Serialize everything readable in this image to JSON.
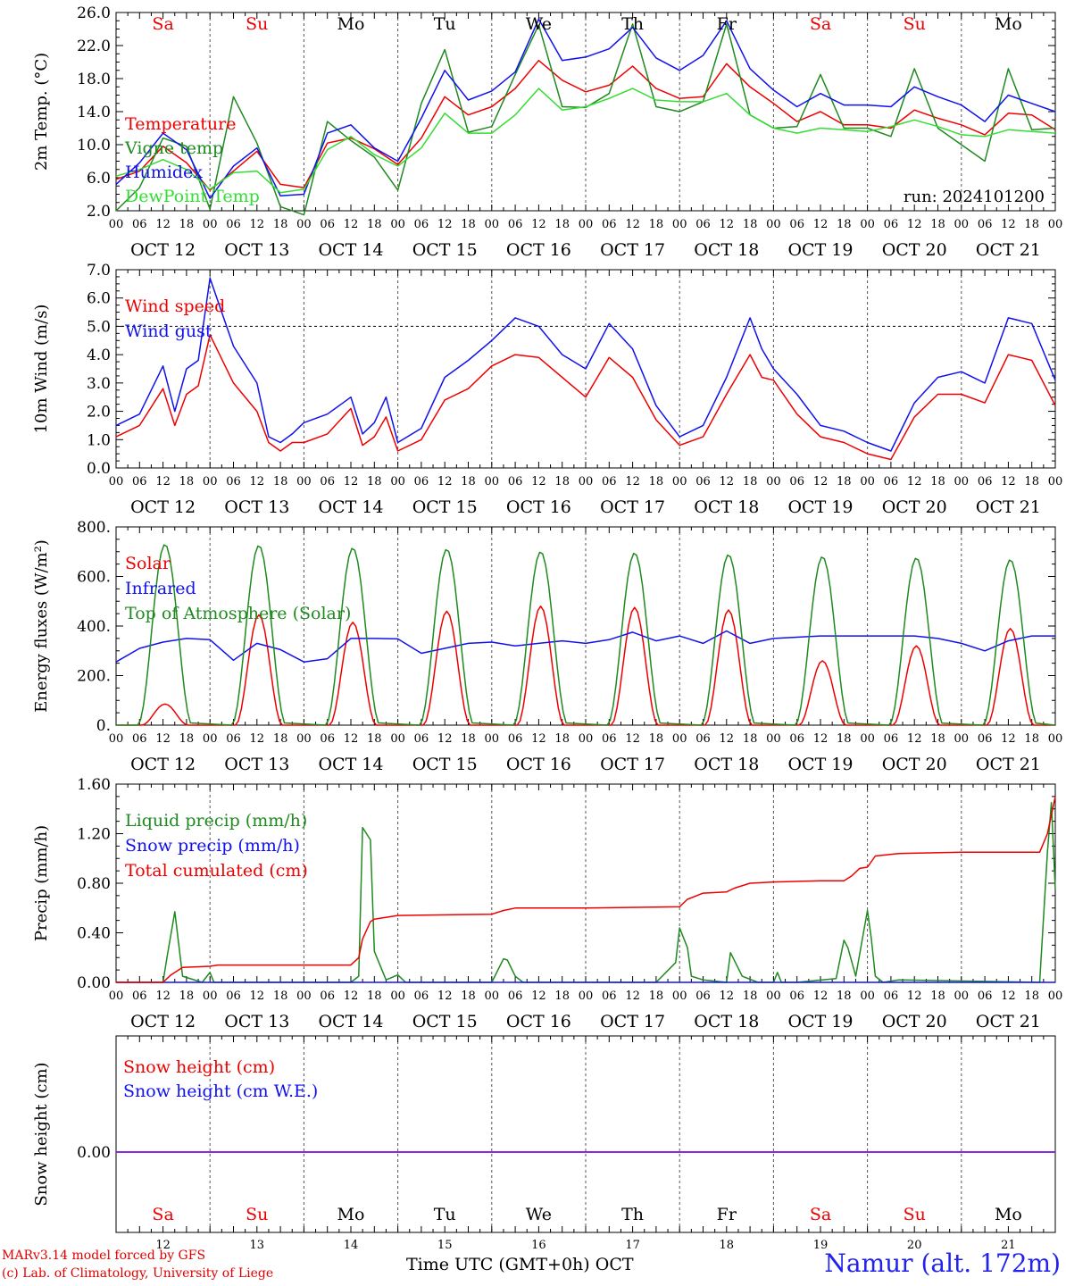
{
  "colors": {
    "red": "#ee0000",
    "green": "#1f8a1f",
    "light_green": "#33dd33",
    "blue": "#1111ee",
    "purple": "#8a2be2",
    "weekend": "#ee0000",
    "weekday": "#000000"
  },
  "time_axis": {
    "hour_labels": [
      "00",
      "06",
      "12",
      "18"
    ],
    "end_label": "00",
    "dates": [
      "OCT 12",
      "OCT 13",
      "OCT 14",
      "OCT 15",
      "OCT 16",
      "OCT 17",
      "OCT 18",
      "OCT 19",
      "OCT 20",
      "OCT 21"
    ],
    "weekdays": [
      "Sa",
      "Su",
      "Mo",
      "Tu",
      "We",
      "Th",
      "Fr",
      "Sa",
      "Su",
      "Mo"
    ],
    "weekend": [
      true,
      true,
      false,
      false,
      false,
      false,
      false,
      true,
      true,
      false
    ],
    "day_numbers": [
      "12",
      "13",
      "14",
      "15",
      "16",
      "17",
      "18",
      "19",
      "20",
      "21"
    ]
  },
  "footer": {
    "model": "MARv3.14 model forced by GFS",
    "lab": "(c) Lab. of Climatology, University of Liege",
    "time_label": "Time UTC (GMT+0h)",
    "month": "OCT",
    "station": "Namur (alt. 172m)"
  },
  "chart_data": [
    {
      "type": "line",
      "ylabel": "2m Temp. (°C)",
      "ylim": [
        2.0,
        26.0
      ],
      "yticks": [
        "2.0",
        "6.0",
        "10.0",
        "14.0",
        "18.0",
        "22.0",
        "26.0"
      ],
      "annotation": "run: 2024101200",
      "x_unit": "hours since OCT 12 00 UTC",
      "series": [
        {
          "name": "Temperature",
          "color": "red",
          "x": [
            0,
            6,
            12,
            18,
            24,
            30,
            36,
            42,
            48,
            54,
            60,
            66,
            72,
            78,
            84,
            90,
            96,
            102,
            108,
            114,
            120,
            126,
            132,
            138,
            144,
            150,
            156,
            162,
            168,
            174,
            180,
            186,
            192,
            198,
            204,
            210,
            216,
            222,
            228,
            234,
            240
          ],
          "y": [
            5.8,
            6.8,
            9.8,
            7.8,
            4.5,
            6.8,
            9.2,
            5.2,
            4.8,
            10.2,
            10.8,
            9.5,
            7.6,
            10.8,
            15.8,
            13.6,
            14.6,
            16.8,
            20.2,
            17.8,
            16.4,
            17.2,
            19.5,
            16.8,
            15.6,
            15.8,
            19.8,
            17.0,
            15.0,
            12.8,
            14.0,
            12.4,
            12.4,
            12.0,
            14.2,
            13.2,
            12.4,
            11.2,
            13.8,
            13.6,
            11.8
          ]
        },
        {
          "name": "Vigne temp",
          "color": "green",
          "x": [
            0,
            6,
            12,
            18,
            24,
            30,
            36,
            42,
            48,
            54,
            60,
            66,
            72,
            78,
            84,
            90,
            96,
            102,
            108,
            114,
            120,
            126,
            132,
            138,
            144,
            150,
            156,
            162,
            168,
            174,
            180,
            186,
            192,
            198,
            204,
            210,
            216,
            222,
            228,
            234,
            240
          ],
          "y": [
            2.0,
            4.8,
            10.8,
            9.8,
            2.2,
            15.8,
            10.2,
            2.5,
            1.5,
            12.8,
            10.5,
            8.5,
            4.5,
            15.0,
            21.5,
            11.5,
            12.2,
            18.5,
            24.5,
            14.6,
            14.5,
            16.2,
            24.6,
            14.6,
            14.0,
            15.2,
            24.6,
            13.6,
            12.0,
            12.2,
            18.5,
            12.0,
            12.0,
            11.0,
            19.2,
            12.0,
            10.0,
            8.0,
            19.2,
            11.8,
            12.0
          ]
        },
        {
          "name": "Humidex",
          "color": "blue",
          "x": [
            0,
            6,
            12,
            18,
            24,
            30,
            36,
            42,
            48,
            54,
            60,
            66,
            72,
            78,
            84,
            90,
            96,
            102,
            108,
            114,
            120,
            126,
            132,
            138,
            144,
            150,
            156,
            162,
            168,
            174,
            180,
            186,
            192,
            198,
            204,
            210,
            216,
            222,
            228,
            234,
            240
          ],
          "y": [
            5.2,
            7.8,
            11.4,
            9.4,
            3.5,
            7.4,
            9.6,
            3.8,
            4.0,
            11.4,
            12.4,
            9.6,
            8.0,
            13.2,
            19.0,
            15.4,
            16.5,
            18.8,
            25.2,
            20.2,
            20.6,
            21.6,
            24.2,
            20.5,
            19.0,
            20.8,
            25.0,
            19.2,
            16.6,
            14.6,
            16.2,
            14.8,
            14.8,
            14.6,
            17.0,
            15.8,
            14.8,
            12.8,
            16.0,
            15.0,
            14.0
          ]
        },
        {
          "name": "DewPoint Temp",
          "color": "light_green",
          "x": [
            0,
            6,
            12,
            18,
            24,
            30,
            36,
            42,
            48,
            54,
            60,
            66,
            72,
            78,
            84,
            90,
            96,
            102,
            108,
            114,
            120,
            126,
            132,
            138,
            144,
            150,
            156,
            162,
            168,
            174,
            180,
            186,
            192,
            198,
            204,
            210,
            216,
            222,
            228,
            234,
            240
          ],
          "y": [
            6.2,
            7.0,
            8.2,
            7.0,
            4.6,
            6.6,
            6.8,
            4.2,
            4.6,
            9.4,
            11.0,
            8.8,
            7.4,
            9.6,
            13.8,
            11.4,
            11.4,
            13.6,
            16.8,
            14.2,
            14.6,
            15.6,
            16.8,
            15.4,
            15.2,
            15.2,
            16.2,
            13.6,
            12.0,
            11.4,
            12.0,
            11.8,
            11.6,
            12.2,
            13.0,
            12.2,
            11.2,
            11.0,
            11.8,
            11.6,
            11.4
          ]
        }
      ]
    },
    {
      "type": "line",
      "ylabel": "10m Wind (m/s)",
      "ylim": [
        0.0,
        7.0
      ],
      "yticks": [
        "0.0",
        "1.0",
        "2.0",
        "3.0",
        "4.0",
        "5.0",
        "6.0",
        "7.0"
      ],
      "reference_line": 5.0,
      "x_unit": "hours since OCT 12 00 UTC",
      "series": [
        {
          "name": "Wind speed",
          "color": "red",
          "x": [
            0,
            6,
            12,
            15,
            18,
            21,
            24,
            30,
            36,
            39,
            42,
            45,
            48,
            54,
            60,
            63,
            66,
            69,
            72,
            78,
            84,
            90,
            96,
            102,
            108,
            114,
            120,
            126,
            132,
            138,
            144,
            150,
            156,
            162,
            165,
            168,
            174,
            180,
            186,
            192,
            198,
            204,
            210,
            216,
            222,
            228,
            234,
            240
          ],
          "y": [
            1.1,
            1.5,
            2.8,
            1.5,
            2.6,
            2.9,
            4.7,
            3.0,
            2.0,
            0.9,
            0.6,
            0.9,
            0.9,
            1.2,
            2.1,
            0.8,
            1.1,
            1.8,
            0.6,
            1.0,
            2.4,
            2.8,
            3.6,
            4.0,
            3.9,
            3.2,
            2.5,
            3.9,
            3.2,
            1.7,
            0.8,
            1.1,
            2.6,
            4.0,
            3.2,
            3.1,
            1.9,
            1.1,
            0.9,
            0.5,
            0.3,
            1.8,
            2.6,
            2.6,
            2.3,
            4.0,
            3.8,
            2.2
          ]
        },
        {
          "name": "Wind gust",
          "color": "blue",
          "x": [
            0,
            6,
            12,
            15,
            18,
            21,
            24,
            30,
            36,
            39,
            42,
            45,
            48,
            54,
            60,
            63,
            66,
            69,
            72,
            78,
            84,
            90,
            96,
            102,
            108,
            114,
            120,
            126,
            132,
            138,
            144,
            150,
            156,
            162,
            165,
            168,
            174,
            180,
            186,
            192,
            198,
            204,
            210,
            216,
            222,
            228,
            234,
            240
          ],
          "y": [
            1.5,
            1.9,
            3.6,
            2.0,
            3.5,
            3.8,
            6.7,
            4.3,
            3.0,
            1.1,
            0.9,
            1.2,
            1.6,
            1.9,
            2.5,
            1.2,
            1.6,
            2.5,
            0.9,
            1.4,
            3.2,
            3.8,
            4.5,
            5.3,
            5.0,
            4.0,
            3.5,
            5.1,
            4.2,
            2.2,
            1.1,
            1.5,
            3.2,
            5.3,
            4.2,
            3.5,
            2.6,
            1.5,
            1.3,
            0.9,
            0.6,
            2.3,
            3.2,
            3.4,
            3.0,
            5.3,
            5.1,
            3.1
          ]
        }
      ]
    },
    {
      "type": "line",
      "ylabel": "Energy fluxes (W/m²)",
      "ylim": [
        0,
        800
      ],
      "yticks": [
        "0.",
        "200.",
        "400.",
        "600.",
        "800."
      ],
      "x_unit": "hours since OCT 12 00 UTC",
      "series": [
        {
          "name": "Solar",
          "color": "red",
          "peaks": [
            {
              "h": 12.5,
              "v": 85
            },
            {
              "h": 36.5,
              "v": 445
            },
            {
              "h": 60.5,
              "v": 415
            },
            {
              "h": 84.5,
              "v": 460
            },
            {
              "h": 108.5,
              "v": 480
            },
            {
              "h": 132.5,
              "v": 475
            },
            {
              "h": 156.5,
              "v": 465
            },
            {
              "h": 180.5,
              "v": 260
            },
            {
              "h": 204.5,
              "v": 320
            },
            {
              "h": 228.5,
              "v": 390
            }
          ]
        },
        {
          "name": "Infrared",
          "color": "blue",
          "x": [
            0,
            6,
            12,
            18,
            24,
            30,
            36,
            42,
            48,
            54,
            60,
            66,
            72,
            78,
            84,
            90,
            96,
            102,
            108,
            114,
            120,
            126,
            132,
            138,
            144,
            150,
            156,
            162,
            168,
            174,
            180,
            186,
            192,
            198,
            204,
            210,
            216,
            222,
            228,
            234,
            240
          ],
          "y": [
            255,
            310,
            335,
            350,
            345,
            262,
            330,
            305,
            255,
            268,
            350,
            350,
            348,
            290,
            310,
            330,
            335,
            320,
            330,
            340,
            330,
            345,
            375,
            340,
            360,
            330,
            380,
            330,
            350,
            355,
            360,
            360,
            360,
            360,
            360,
            350,
            330,
            300,
            340,
            360,
            360
          ]
        },
        {
          "name": "Top of Atmosphere (Solar)",
          "color": "green",
          "peaks": [
            {
              "h": 12.5,
              "v": 730
            },
            {
              "h": 36.5,
              "v": 725
            },
            {
              "h": 60.5,
              "v": 715
            },
            {
              "h": 84.5,
              "v": 710
            },
            {
              "h": 108.5,
              "v": 700
            },
            {
              "h": 132.5,
              "v": 695
            },
            {
              "h": 156.5,
              "v": 688
            },
            {
              "h": 180.5,
              "v": 680
            },
            {
              "h": 204.5,
              "v": 675
            },
            {
              "h": 228.5,
              "v": 668
            }
          ]
        }
      ]
    },
    {
      "type": "line",
      "ylabel": "Precip (mm/h)",
      "ylim": [
        0.0,
        1.6
      ],
      "yticks": [
        "0.00",
        "0.40",
        "0.80",
        "1.20",
        "1.60"
      ],
      "x_unit": "hours since OCT 12 00 UTC",
      "series": [
        {
          "name": "Liquid precip (mm/h)",
          "color": "green",
          "x": [
            0,
            12,
            13,
            15,
            17,
            22,
            24,
            25,
            26,
            60,
            62,
            63,
            65,
            66,
            69,
            72,
            74,
            96,
            99,
            100,
            102,
            104,
            138,
            143,
            144,
            146,
            147,
            150,
            156,
            157,
            160,
            164,
            168,
            169,
            170,
            174,
            184,
            186,
            187,
            189,
            192,
            193,
            194,
            196,
            200,
            236,
            238,
            239,
            240
          ],
          "y": [
            0,
            0,
            0.2,
            0.57,
            0.05,
            0,
            0.08,
            0,
            0,
            0,
            0.05,
            1.25,
            1.15,
            0.25,
            0.02,
            0.06,
            0,
            0,
            0.19,
            0.18,
            0.05,
            0,
            0,
            0.16,
            0.44,
            0.28,
            0.05,
            0.02,
            0,
            0.24,
            0.05,
            0,
            0,
            0.08,
            0,
            0,
            0.03,
            0.34,
            0.28,
            0.05,
            0.58,
            0.35,
            0.05,
            0,
            0.02,
            0,
            1.05,
            1.45,
            0.75
          ]
        },
        {
          "name": "Snow precip (mm/h)",
          "color": "blue",
          "x": [
            0,
            240
          ],
          "y": [
            0,
            0
          ]
        },
        {
          "name": "Total cumulated (cm)",
          "color": "red",
          "x": [
            0,
            12,
            14,
            17,
            24,
            26,
            60,
            62,
            63,
            65,
            66,
            70,
            72,
            96,
            99,
            102,
            120,
            144,
            146,
            150,
            156,
            158,
            162,
            168,
            180,
            186,
            188,
            190,
            192,
            194,
            200,
            216,
            236,
            238,
            240
          ],
          "y": [
            0,
            0,
            0.06,
            0.12,
            0.13,
            0.14,
            0.14,
            0.2,
            0.35,
            0.49,
            0.51,
            0.53,
            0.54,
            0.55,
            0.58,
            0.6,
            0.6,
            0.61,
            0.67,
            0.72,
            0.73,
            0.76,
            0.8,
            0.81,
            0.82,
            0.82,
            0.86,
            0.92,
            0.93,
            1.02,
            1.04,
            1.05,
            1.05,
            1.2,
            1.5
          ]
        }
      ]
    },
    {
      "type": "line",
      "ylabel": "Snow height (cm)",
      "yticks": [
        "0.00"
      ],
      "x_unit": "hours since OCT 12 00 UTC",
      "series": [
        {
          "name": "Snow height (cm)",
          "color": "red",
          "x": [
            0,
            240
          ],
          "y": [
            0,
            0
          ]
        },
        {
          "name": "Snow height (cm W.E.)",
          "color": "blue",
          "x": [
            0,
            240
          ],
          "y": [
            0,
            0
          ]
        }
      ]
    }
  ]
}
